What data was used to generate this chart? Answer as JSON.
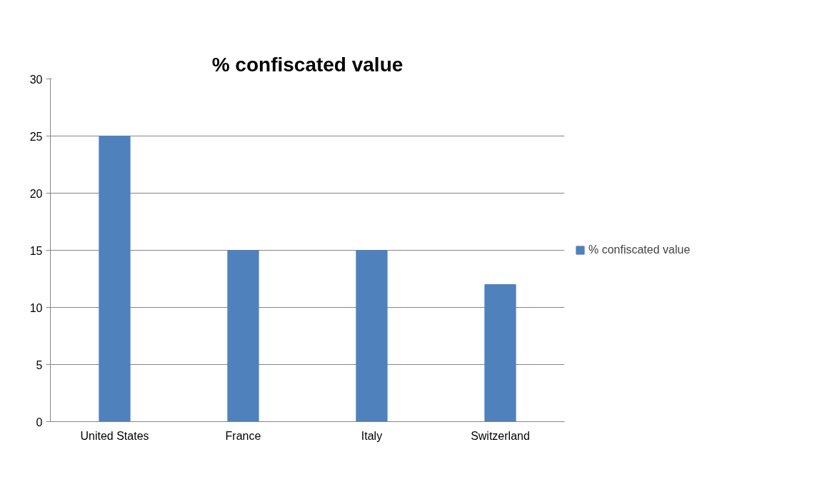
{
  "chart_data": {
    "type": "bar",
    "title": "% confiscated value",
    "categories": [
      "United States",
      "France",
      "Italy",
      "Switzerland"
    ],
    "series": [
      {
        "name": "% confiscated value",
        "color": "#4f81bd",
        "values": [
          25,
          15,
          15,
          12
        ]
      }
    ],
    "ylim": [
      0,
      30
    ],
    "yticks": [
      0,
      5,
      10,
      15,
      20,
      25,
      30
    ],
    "grid": "y",
    "legend": "right"
  }
}
